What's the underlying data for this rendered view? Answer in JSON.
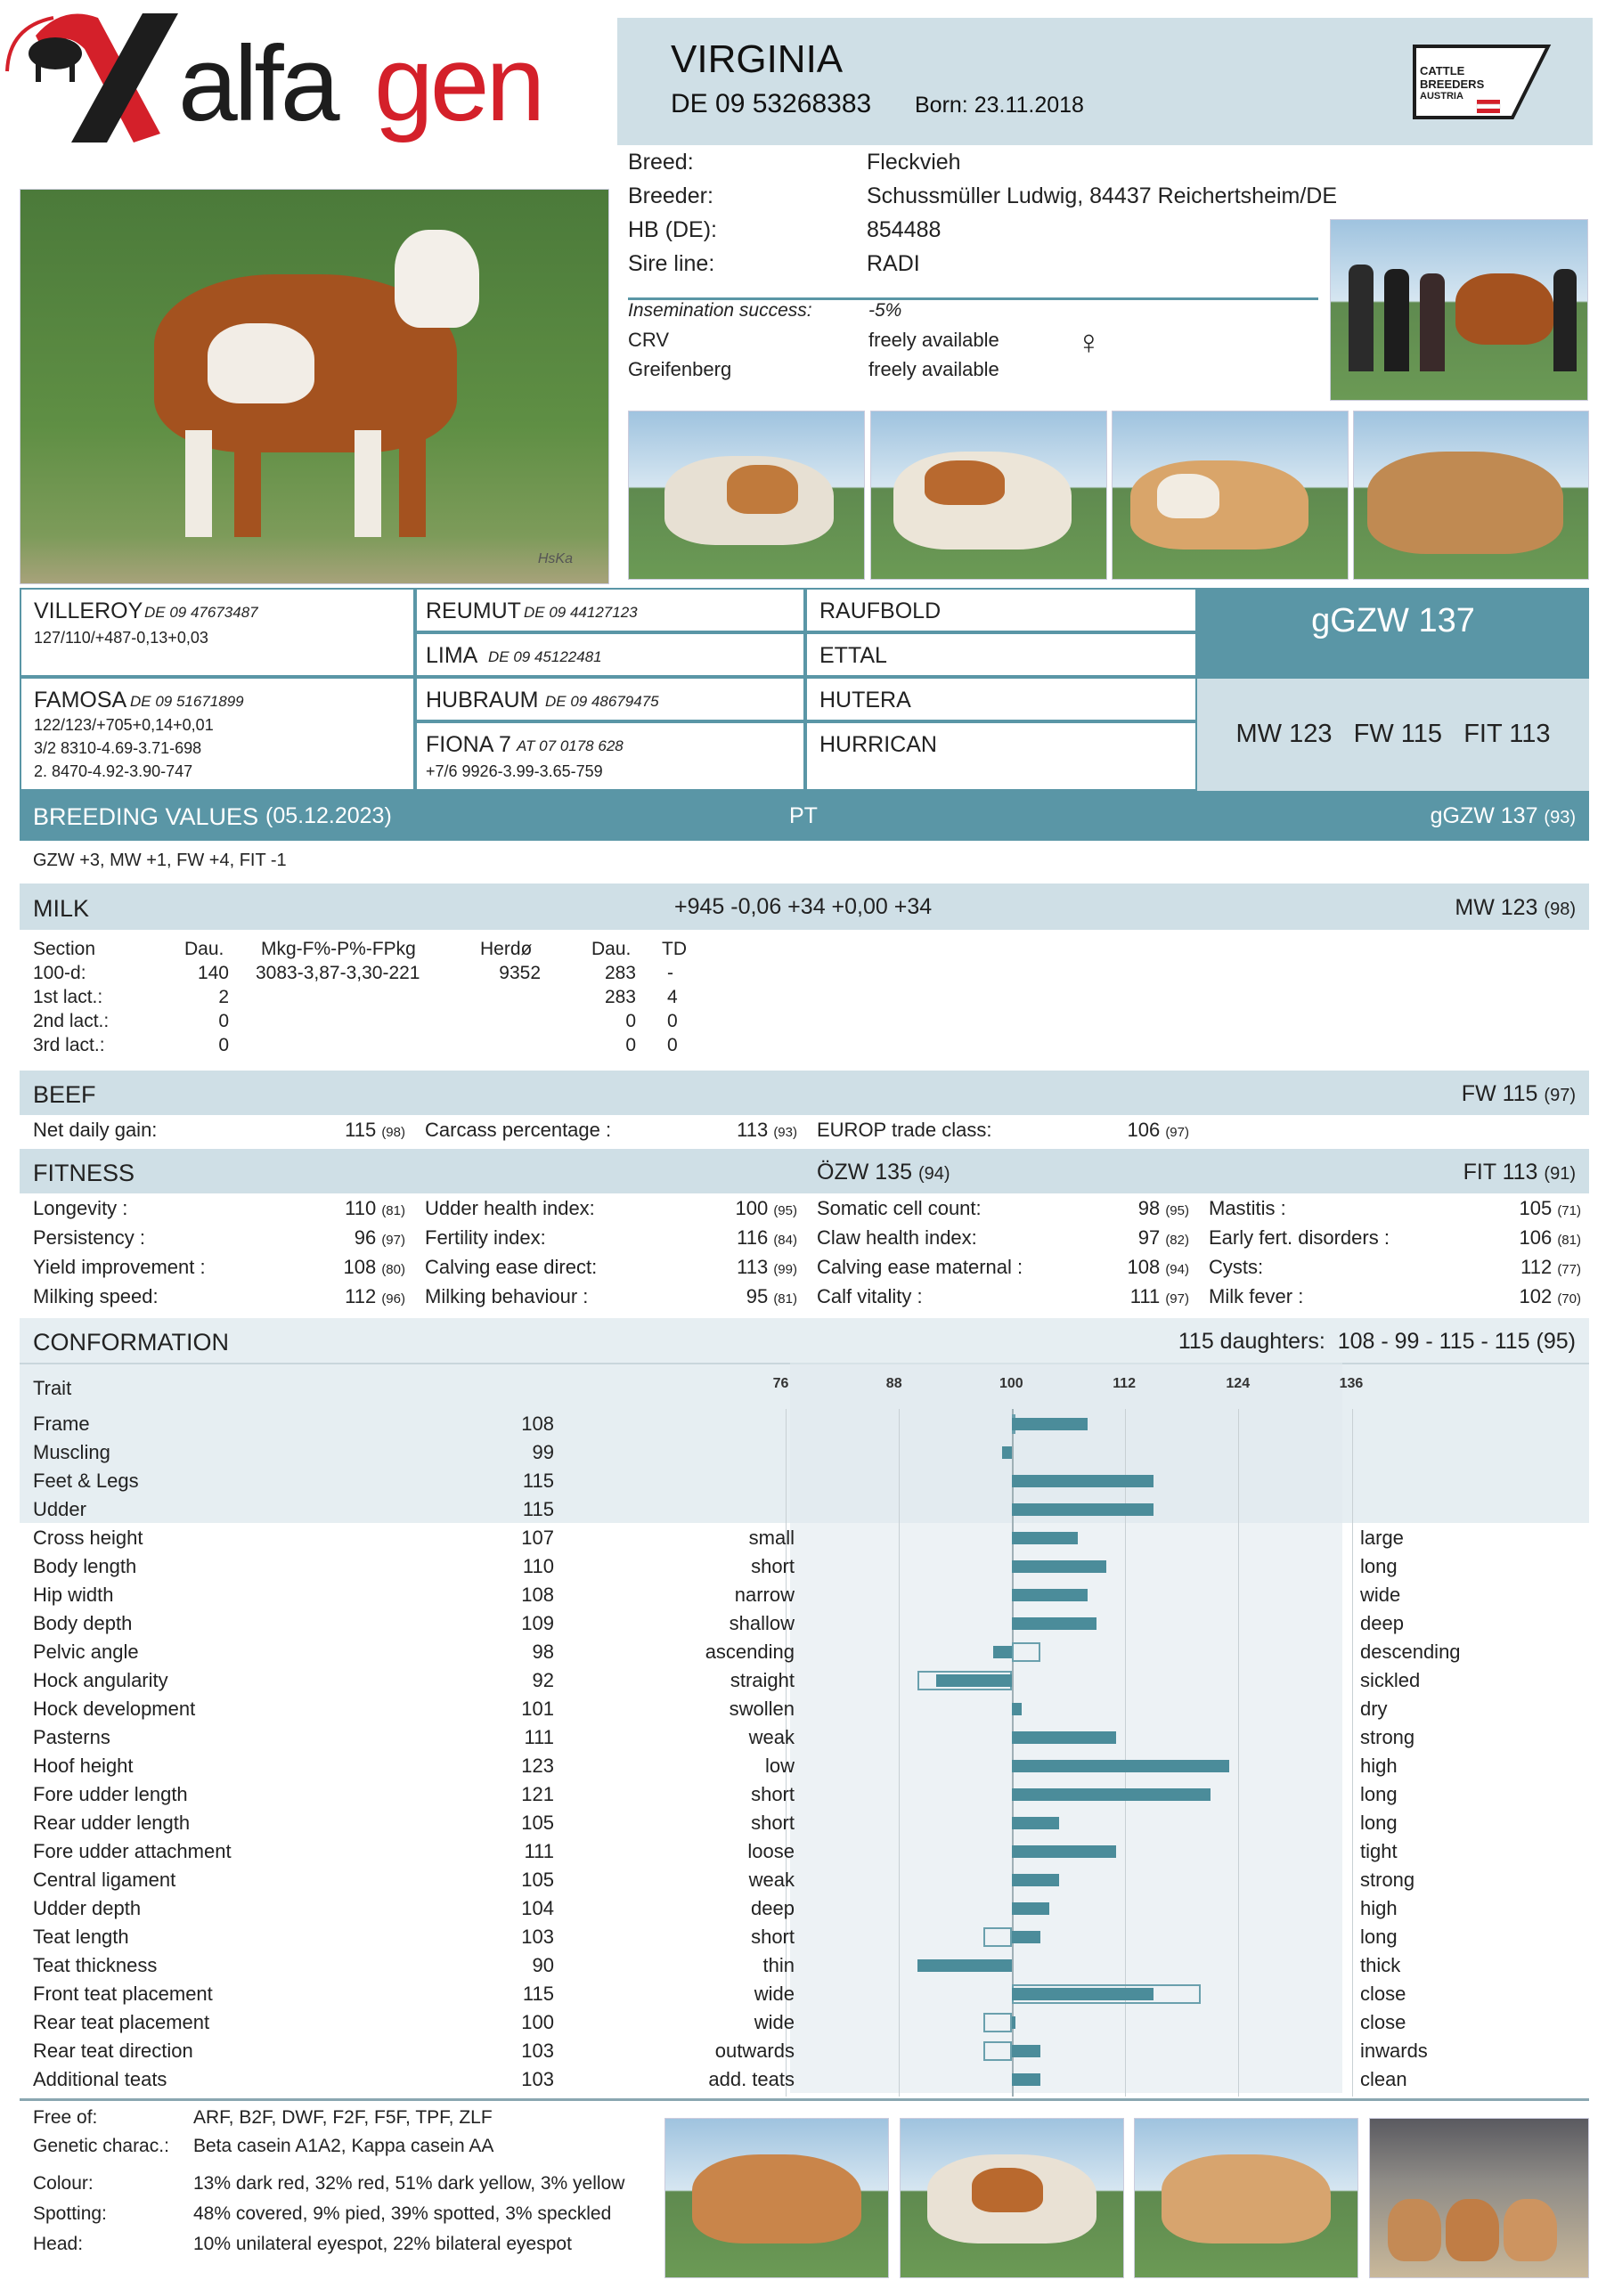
{
  "brand": {
    "name": "alfagen",
    "partner_logo_lines": [
      "CATTLE",
      "BREEDERS",
      "AUSTRIA"
    ]
  },
  "header": {
    "name": "VIRGINIA",
    "id": "DE 09 53268383",
    "born": "Born: 23.11.2018"
  },
  "info": [
    {
      "label": "Breed:",
      "value": "Fleckvieh"
    },
    {
      "label": "Breeder:",
      "value": "Schussmüller Ludwig, 84437 Reichertsheim/DE"
    },
    {
      "label": "HB (DE):",
      "value": "854488"
    },
    {
      "label": "Sire line:",
      "value": "RADI"
    }
  ],
  "insemination": {
    "label": "Insemination success:",
    "value": "-5%"
  },
  "availability": [
    {
      "label": "CRV",
      "value": "freely available"
    },
    {
      "label": "Greifenberg",
      "value": "freely available"
    }
  ],
  "female_symbol": "♀",
  "photo_credit": "HsKa",
  "pedigree": {
    "sire": {
      "name": "VILLEROY",
      "id": "DE 09 47673487",
      "line1": "127/110/+487-0,13+0,03"
    },
    "dam": {
      "name": "FAMOSA",
      "id": "DE 09 51671899",
      "line1": "122/123/+705+0,14+0,01",
      "line2": "3/2 8310-4.69-3.71-698",
      "line3": "2. 8470-4.92-3.90-747"
    },
    "ss": {
      "name": "REUMUT",
      "id": "DE 09 44127123"
    },
    "sd": {
      "name": "LIMA",
      "id": "DE 09 45122481"
    },
    "ds": {
      "name": "HUBRAUM",
      "id": "DE 09 48679475"
    },
    "dd": {
      "name": "FIONA 7",
      "id": "AT 07 0178 628",
      "line1": "+7/6 9926-3.99-3.65-759"
    },
    "sss": "RAUFBOLD",
    "sds": "ETTAL",
    "dss": "HUTERA",
    "dds": "HURRICAN"
  },
  "index_box": {
    "ggzw": "gGZW 137",
    "sub": "MW 123   FW 115   FIT 113"
  },
  "breeding": {
    "title": "BREEDING VALUES",
    "date": "(05.12.2023)",
    "pt": "PT",
    "ggzw": "gGZW 137",
    "ggzw_rel": "(93)",
    "change": "GZW +3, MW +1, FW +4, FIT -1"
  },
  "milk": {
    "title": "MILK",
    "values": "+945 -0,06 +34 +0,00 +34",
    "index": "MW 123",
    "rel": "(98)",
    "headers": [
      "Section",
      "Dau.",
      "Mkg-F%-P%-FPkg",
      "Herdø",
      "Dau.",
      "TD"
    ],
    "rows": [
      [
        "100-d:",
        "140",
        "3083-3,87-3,30-221",
        "9352",
        "283",
        "-"
      ],
      [
        "1st lact.:",
        "2",
        "",
        "",
        "283",
        "4"
      ],
      [
        "2nd lact.:",
        "0",
        "",
        "",
        "0",
        "0"
      ],
      [
        "3rd lact.:",
        "0",
        "",
        "",
        "0",
        "0"
      ]
    ]
  },
  "beef": {
    "title": "BEEF",
    "index": "FW 115",
    "rel": "(97)",
    "items": [
      {
        "label": "Net daily gain:",
        "value": "115",
        "rel": "(98)"
      },
      {
        "label": "Carcass percentage :",
        "value": "113",
        "rel": "(93)"
      },
      {
        "label": "EUROP trade class:",
        "value": "106",
        "rel": "(97)"
      }
    ]
  },
  "fitness": {
    "title": "FITNESS",
    "ozw": "ÖZW 135",
    "ozw_rel": "(94)",
    "index": "FIT 113",
    "rel": "(91)",
    "items": [
      {
        "label": "Longevity :",
        "value": "110",
        "rel": "(81)"
      },
      {
        "label": "Persistency :",
        "value": "96",
        "rel": "(97)"
      },
      {
        "label": "Yield improvement :",
        "value": "108",
        "rel": "(80)"
      },
      {
        "label": "Milking speed:",
        "value": "112",
        "rel": "(96)"
      },
      {
        "label": "Udder health index:",
        "value": "100",
        "rel": "(95)"
      },
      {
        "label": "Fertility index:",
        "value": "116",
        "rel": "(84)"
      },
      {
        "label": "Calving ease direct:",
        "value": "113",
        "rel": "(99)"
      },
      {
        "label": "Milking behaviour :",
        "value": "95",
        "rel": "(81)"
      },
      {
        "label": "Somatic cell count:",
        "value": "98",
        "rel": "(95)"
      },
      {
        "label": "Claw health index:",
        "value": "97",
        "rel": "(82)"
      },
      {
        "label": "Calving ease maternal :",
        "value": "108",
        "rel": "(94)"
      },
      {
        "label": "Calf vitality :",
        "value": "111",
        "rel": "(97)"
      },
      {
        "label": "Mastitis :",
        "value": "105",
        "rel": "(71)"
      },
      {
        "label": "Early fert. disorders :",
        "value": "106",
        "rel": "(81)"
      },
      {
        "label": "Cysts:",
        "value": "112",
        "rel": "(77)"
      },
      {
        "label": "Milk fever :",
        "value": "102",
        "rel": "(70)"
      }
    ]
  },
  "conformation": {
    "title": "CONFORMATION",
    "summary": "115 daughters:  108 - 99 - 115 - 115 (95)",
    "trait_header": "Trait",
    "ticks": [
      76,
      88,
      100,
      112,
      124,
      136
    ],
    "traits": [
      {
        "name": "Frame",
        "value": 108,
        "lo": "",
        "hi": "",
        "prev": 100
      },
      {
        "name": "Muscling",
        "value": 99,
        "lo": "",
        "hi": ""
      },
      {
        "name": "Feet & Legs",
        "value": 115,
        "lo": "",
        "hi": ""
      },
      {
        "name": "Udder",
        "value": 115,
        "lo": "",
        "hi": ""
      },
      {
        "name": "Cross height",
        "value": 107,
        "lo": "small",
        "hi": "large"
      },
      {
        "name": "Body length",
        "value": 110,
        "lo": "short",
        "hi": "long"
      },
      {
        "name": "Hip width",
        "value": 108,
        "lo": "narrow",
        "hi": "wide"
      },
      {
        "name": "Body depth",
        "value": 109,
        "lo": "shallow",
        "hi": "deep"
      },
      {
        "name": "Pelvic angle",
        "value": 98,
        "lo": "ascending",
        "hi": "descending",
        "prev": 103
      },
      {
        "name": "Hock angularity",
        "value": 92,
        "lo": "straight",
        "hi": "sickled",
        "prev": 90
      },
      {
        "name": "Hock development",
        "value": 101,
        "lo": "swollen",
        "hi": "dry"
      },
      {
        "name": "Pasterns",
        "value": 111,
        "lo": "weak",
        "hi": "strong"
      },
      {
        "name": "Hoof height",
        "value": 123,
        "lo": "low",
        "hi": "high"
      },
      {
        "name": "Fore udder length",
        "value": 121,
        "lo": "short",
        "hi": "long"
      },
      {
        "name": "Rear udder length",
        "value": 105,
        "lo": "short",
        "hi": "long"
      },
      {
        "name": "Fore udder attachment",
        "value": 111,
        "lo": "loose",
        "hi": "tight"
      },
      {
        "name": "Central ligament",
        "value": 105,
        "lo": "weak",
        "hi": "strong"
      },
      {
        "name": "Udder depth",
        "value": 104,
        "lo": "deep",
        "hi": "high"
      },
      {
        "name": "Teat length",
        "value": 103,
        "lo": "short",
        "hi": "long",
        "prev": 97
      },
      {
        "name": "Teat thickness",
        "value": 90,
        "lo": "thin",
        "hi": "thick"
      },
      {
        "name": "Front teat placement",
        "value": 115,
        "lo": "wide",
        "hi": "close",
        "prev": 120
      },
      {
        "name": "Rear teat placement",
        "value": 100,
        "lo": "wide",
        "hi": "close",
        "prev": 97
      },
      {
        "name": "Rear teat direction",
        "value": 103,
        "lo": "outwards",
        "hi": "inwards",
        "prev": 97
      },
      {
        "name": "Additional teats",
        "value": 103,
        "lo": "add. teats",
        "hi": "clean"
      }
    ]
  },
  "footer": [
    {
      "label": "Free of:",
      "value": "ARF, B2F, DWF, F2F, F5F, TPF, ZLF"
    },
    {
      "label": "Genetic charac.:",
      "value": "Beta casein A1A2, Kappa casein AA"
    },
    {
      "label": "Colour:",
      "value": "13% dark red, 32% red, 51% dark yellow, 3% yellow"
    },
    {
      "label": "Spotting:",
      "value": "48% covered, 9% pied, 39% spotted, 3% speckled"
    },
    {
      "label": "Head:",
      "value": "10% unilateral eyespot, 22% bilateral eyespot"
    }
  ],
  "colors": {
    "accent": "#5a96a6",
    "light": "#cfdfe6",
    "bar": "#4b8c9a",
    "brand_red": "#d4202a"
  }
}
